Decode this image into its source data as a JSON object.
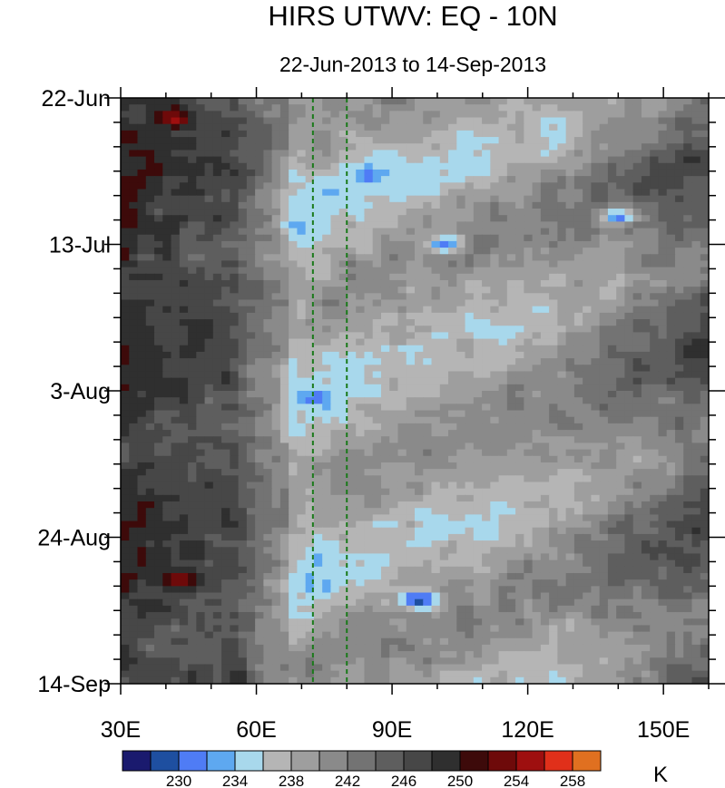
{
  "chart_data": {
    "type": "heatmap",
    "title": "HIRS UTWV: EQ - 10N",
    "subtitle": "22-Jun-2013 to 14-Sep-2013",
    "x_axis": {
      "ticks": [
        {
          "value": 30,
          "label": "30E"
        },
        {
          "value": 60,
          "label": "60E"
        },
        {
          "value": 90,
          "label": "90E"
        },
        {
          "value": 120,
          "label": "120E"
        },
        {
          "value": 150,
          "label": "150E"
        }
      ],
      "range": [
        30,
        160
      ],
      "minor_step": 10
    },
    "y_axis": {
      "ticks": [
        {
          "day": 0,
          "label": "22-Jun"
        },
        {
          "day": 21,
          "label": "13-Jul"
        },
        {
          "day": 42,
          "label": "3-Aug"
        },
        {
          "day": 63,
          "label": "24-Aug"
        },
        {
          "day": 84,
          "label": "14-Sep"
        }
      ],
      "range_labels": [
        "22-Jun-2013",
        "14-Sep-2013"
      ],
      "reversed": true,
      "minor_step_days": 3.5
    },
    "reference_lines": [
      {
        "value": 72.5,
        "style": "dashed",
        "color": "#1a7a1a"
      },
      {
        "value": 80,
        "style": "dashed",
        "color": "#1a7a1a"
      }
    ],
    "colorbar": {
      "unit": "K",
      "levels": [
        228,
        230,
        232,
        234,
        236,
        238,
        240,
        242,
        244,
        246,
        248,
        250,
        252,
        254,
        256,
        258
      ],
      "level_labels": [
        "230",
        "234",
        "238",
        "242",
        "246",
        "250",
        "254",
        "258"
      ],
      "colors": [
        "#1a1a6e",
        "#1e4fa0",
        "#4f7cf5",
        "#5ea8f0",
        "#a8d8ec",
        "#b5b5b5",
        "#9e9e9e",
        "#8a8a8a",
        "#737373",
        "#5e5e5e",
        "#474747",
        "#2f2f2f",
        "#3d0a0a",
        "#6e0a0a",
        "#9e0f0f",
        "#e0301a",
        "#e07020"
      ]
    },
    "features": [
      {
        "lon": 42,
        "day": 3,
        "value": 255
      },
      {
        "lon": 43,
        "day": 69,
        "value": 254
      },
      {
        "lon": 96,
        "day": 72,
        "value": 228
      },
      {
        "lon": 85,
        "day": 11,
        "value": 231
      },
      {
        "lon": 102,
        "day": 21,
        "value": 231
      },
      {
        "lon": 140,
        "day": 17,
        "value": 231
      },
      {
        "lon": 73,
        "day": 43,
        "value": 231
      }
    ]
  }
}
